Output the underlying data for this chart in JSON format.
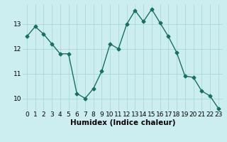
{
  "x": [
    0,
    1,
    2,
    3,
    4,
    5,
    6,
    7,
    8,
    9,
    10,
    11,
    12,
    13,
    14,
    15,
    16,
    17,
    18,
    19,
    20,
    21,
    22,
    23
  ],
  "y": [
    12.5,
    12.9,
    12.6,
    12.2,
    11.8,
    11.8,
    10.2,
    10.0,
    10.4,
    11.1,
    12.2,
    12.0,
    13.0,
    13.55,
    13.1,
    13.6,
    13.05,
    12.5,
    11.85,
    10.9,
    10.85,
    10.3,
    10.1,
    9.6
  ],
  "line_color": "#1a7060",
  "marker": "D",
  "markersize": 2.5,
  "linewidth": 1.0,
  "bg_color": "#cceef0",
  "grid_color": "#aad8da",
  "xlabel": "Humidex (Indice chaleur)",
  "xlabel_fontsize": 7.5,
  "tick_fontsize": 6.5,
  "ylim": [
    9.5,
    13.8
  ],
  "xlim": [
    -0.5,
    23.5
  ],
  "yticks": [
    10,
    11,
    12,
    13
  ],
  "xticks": [
    0,
    1,
    2,
    3,
    4,
    5,
    6,
    7,
    8,
    9,
    10,
    11,
    12,
    13,
    14,
    15,
    16,
    17,
    18,
    19,
    20,
    21,
    22,
    23
  ]
}
